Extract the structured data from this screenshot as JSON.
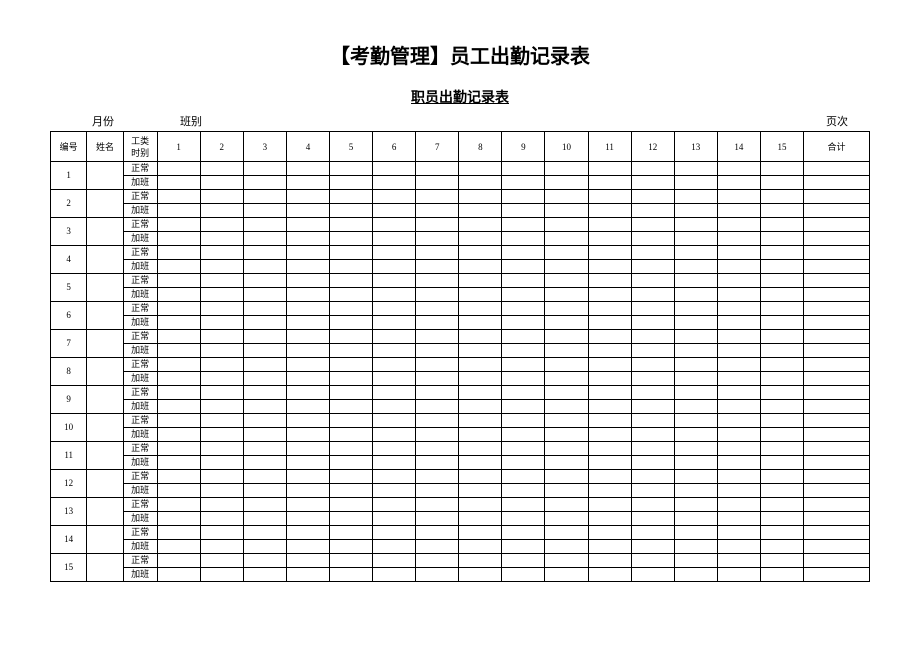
{
  "titles": {
    "main": "【考勤管理】员工出勤记录表",
    "sub": "职员出勤记录表"
  },
  "meta": {
    "month_label": "月份",
    "class_label": "班别",
    "page_label": "页次"
  },
  "header": {
    "no": "编号",
    "name": "姓名",
    "type": "工类\n时别",
    "days": [
      "1",
      "2",
      "3",
      "4",
      "5",
      "6",
      "7",
      "8",
      "9",
      "10",
      "11",
      "12",
      "13",
      "14",
      "15"
    ],
    "total": "合计"
  },
  "row_types": {
    "normal": "正常",
    "overtime": "加班"
  },
  "row_count": 15,
  "style": {
    "border_color": "#000000",
    "background_color": "#ffffff"
  }
}
